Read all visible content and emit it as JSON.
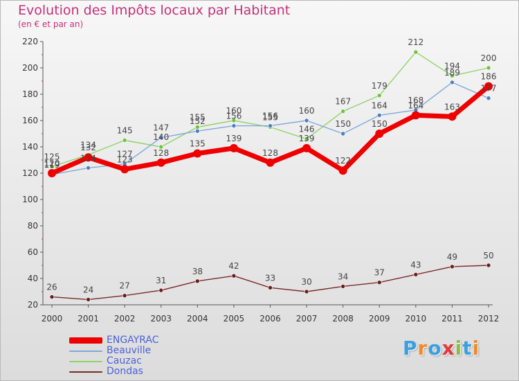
{
  "chart_data": {
    "type": "line",
    "title": "Evolution des Impôts locaux par Habitant",
    "subtitle": "(en € et par an)",
    "x": [
      "2000",
      "2001",
      "2002",
      "2003",
      "2004",
      "2005",
      "2006",
      "2007",
      "2008",
      "2009",
      "2010",
      "2011",
      "2012"
    ],
    "yticks": [
      "20",
      "40",
      "60",
      "80",
      "100",
      "120",
      "140",
      "160",
      "180",
      "200",
      "220"
    ],
    "ylim": [
      20,
      220
    ],
    "grid": false,
    "legend_position": "bottom-left",
    "series": [
      {
        "name": "Cauzac",
        "color": "#8fd36a",
        "dot": "#6cc33c",
        "width": 1.4,
        "values": [
          125,
          134,
          145,
          140,
          155,
          160,
          155,
          146,
          167,
          179,
          212,
          194,
          200
        ],
        "labels": [
          "125",
          "134",
          "145",
          "140",
          "155",
          "160",
          "155",
          "146",
          "167",
          "179",
          "212",
          "194",
          "200"
        ]
      },
      {
        "name": "Beauville",
        "color": "#7fa8d8",
        "dot": "#4a7fc4",
        "width": 1.4,
        "values": [
          119,
          124,
          127,
          147,
          152,
          156,
          156,
          160,
          150,
          164,
          168,
          189,
          177
        ],
        "labels": [
          "119",
          "124",
          "127",
          "147",
          "152",
          "156",
          "156",
          "160",
          "150",
          "164",
          "168",
          "189",
          "177"
        ]
      },
      {
        "name": "ENGAYRAC",
        "color": "#ee0000",
        "dot": "#ee0000",
        "width": 7,
        "values": [
          120,
          132,
          123,
          128,
          135,
          139,
          128,
          139,
          122,
          150,
          164,
          163,
          186
        ],
        "labels": [
          "120",
          "132",
          "123",
          "128",
          "135",
          "139",
          "128",
          "139",
          "122",
          "150",
          "164",
          "163",
          "186"
        ]
      },
      {
        "name": "Dondas",
        "color": "#7a2a2a",
        "dot": "#6b1e1e",
        "width": 1.4,
        "values": [
          26,
          24,
          27,
          31,
          38,
          42,
          33,
          30,
          34,
          37,
          43,
          49,
          50
        ],
        "labels": [
          "26",
          "24",
          "27",
          "31",
          "38",
          "42",
          "33",
          "30",
          "34",
          "37",
          "43",
          "49",
          "50"
        ]
      }
    ],
    "legend_order": [
      "ENGAYRAC",
      "Beauville",
      "Cauzac",
      "Dondas"
    ]
  },
  "logo": {
    "text": "Proxiti",
    "letters": [
      "P",
      "r",
      "o",
      "x",
      "i",
      "t",
      "i"
    ],
    "colors": [
      "#3aa0e0",
      "#f08a2a",
      "#3aa0e0",
      "#e03a3a",
      "#8ac040",
      "#3aa0e0",
      "#f08a2a"
    ]
  }
}
